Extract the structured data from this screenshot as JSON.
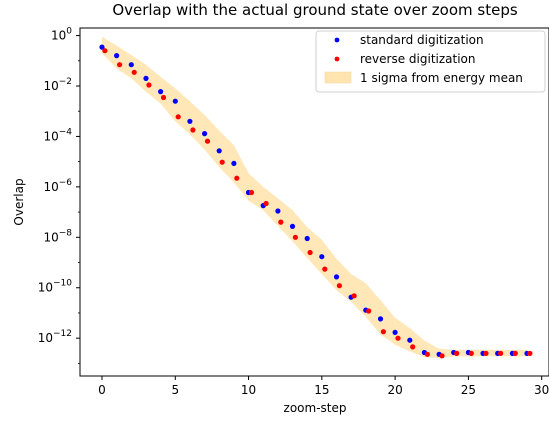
{
  "chart_data": {
    "type": "scatter",
    "title": "Overlap with the actual ground state over zoom steps",
    "xlabel": "zoom-step",
    "ylabel": "Overlap",
    "xlim": [
      -1.5,
      30.5
    ],
    "ylim_log10": [
      -13.5,
      0.3
    ],
    "yscale": "log",
    "grid": false,
    "legend_position": "top-right",
    "x_ticks": [
      "0",
      "5",
      "10",
      "15",
      "20",
      "25",
      "30"
    ],
    "y_ticks": [
      {
        "base": "10",
        "exp": "0"
      },
      {
        "base": "10",
        "exp": "−2"
      },
      {
        "base": "10",
        "exp": "−4"
      },
      {
        "base": "10",
        "exp": "−6"
      },
      {
        "base": "10",
        "exp": "−8"
      },
      {
        "base": "10",
        "exp": "−10"
      },
      {
        "base": "10",
        "exp": "−12"
      }
    ],
    "series": [
      {
        "name": "standard digitization",
        "color": "#0000ff",
        "x": [
          0,
          1,
          2,
          3,
          4,
          5,
          6,
          7,
          8,
          9,
          10,
          11,
          12,
          13,
          14,
          15,
          16,
          17,
          18,
          19,
          20,
          21,
          22,
          23,
          24,
          25,
          26,
          27,
          28,
          29
        ],
        "y": [
          0.35,
          0.16,
          0.07,
          0.02,
          0.006,
          0.0025,
          0.0004,
          0.00013,
          2.7e-05,
          8.5e-06,
          6e-07,
          1.8e-07,
          1.1e-07,
          2.7e-08,
          9e-09,
          1.7e-09,
          2.7e-10,
          4.2e-11,
          1.3e-11,
          5.8e-12,
          1.7e-12,
          8.3e-13,
          2.7e-13,
          2.3e-13,
          2.7e-13,
          2.7e-13,
          2.5e-13,
          2.5e-13,
          2.5e-13,
          2.5e-13
        ]
      },
      {
        "name": "reverse digitization",
        "color": "#ff0000",
        "x": [
          0.2,
          1.2,
          2.2,
          3.2,
          4.2,
          5.2,
          6.2,
          7.2,
          8.2,
          9.2,
          10.2,
          11.2,
          12.2,
          13.2,
          14.2,
          15.2,
          16.2,
          17.2,
          18.2,
          19.2,
          20.2,
          21.2,
          22.2,
          23.2,
          24.2,
          25.2,
          26.2,
          27.2,
          28.2,
          29.2
        ],
        "y": [
          0.25,
          0.07,
          0.035,
          0.011,
          0.0035,
          0.0006,
          0.00018,
          6.5e-05,
          9.5e-06,
          2.2e-06,
          6e-07,
          2.2e-07,
          4e-08,
          1e-08,
          2.5e-09,
          5.5e-10,
          1.2e-10,
          4.8e-11,
          1.2e-11,
          1.8e-12,
          1e-12,
          4.5e-13,
          2.3e-13,
          2e-13,
          2.5e-13,
          2.5e-13,
          2.5e-13,
          2.5e-13,
          2.5e-13,
          2.5e-13
        ]
      }
    ],
    "band": {
      "name": "1 sigma from energy mean",
      "color": "#ffe4b0",
      "x": [
        0,
        1,
        2,
        3,
        4,
        5,
        6,
        7,
        8,
        9,
        10,
        11,
        12,
        13,
        14,
        15,
        16,
        17,
        18,
        19,
        20,
        21,
        22,
        23,
        24,
        25,
        26,
        27,
        28,
        29
      ],
      "upper": [
        0.9,
        0.4,
        0.17,
        0.07,
        0.023,
        0.008,
        0.0025,
        0.0007,
        0.00017,
        4.5e-05,
        3.5e-06,
        1e-06,
        3.5e-07,
        1.2e-07,
        2.5e-08,
        8e-09,
        1.4e-09,
        3.5e-10,
        1.5e-10,
        3.2e-11,
        6.5e-12,
        2.5e-12,
        8e-13,
        3.8e-13,
        3.5e-13,
        3.5e-13,
        3.5e-13,
        3.5e-13,
        3.5e-13,
        3.5e-13
      ],
      "lower": [
        0.2,
        0.05,
        0.02,
        0.006,
        0.002,
        0.0004,
        0.00012,
        3e-05,
        6e-06,
        1.5e-06,
        2.8e-07,
        1.2e-07,
        2.8e-08,
        7e-09,
        1.5e-09,
        3.5e-10,
        8e-11,
        2.8e-11,
        7e-12,
        1.4e-12,
        5.5e-13,
        3e-13,
        1.8e-13,
        1.6e-13,
        1.9e-13,
        1.9e-13,
        1.9e-13,
        1.9e-13,
        1.9e-13,
        1.9e-13
      ]
    }
  }
}
